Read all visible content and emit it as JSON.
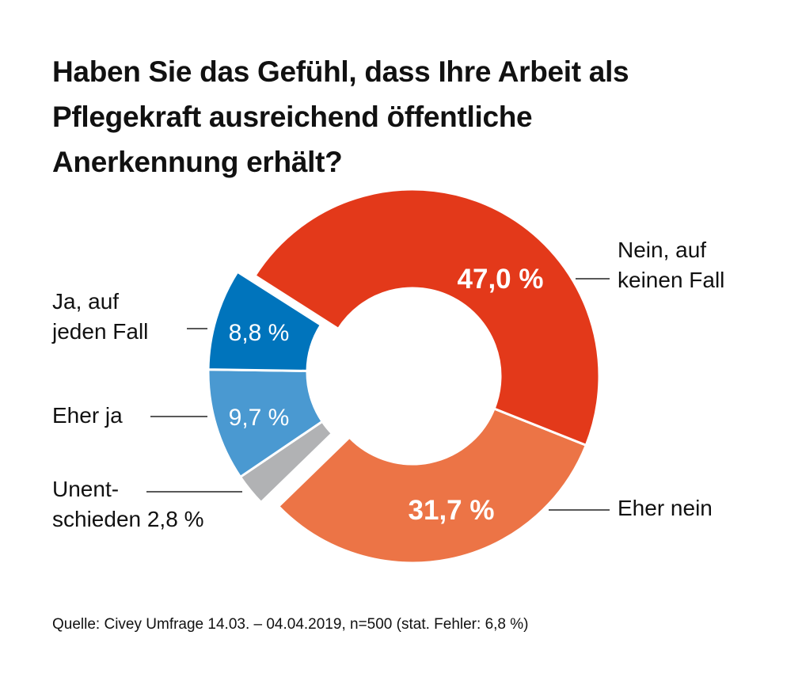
{
  "chart_data": {
    "type": "pie",
    "variant": "donut",
    "title": "Haben Sie das Gefühl, dass Ihre Arbeit als Pflegekraft ausreichend öffentliche Anerkennung erhält?",
    "title_lines": [
      "Haben Sie das Gefühl, dass Ihre Arbeit als",
      "Pflegekraft ausreichend öffentliche",
      "Anerkennung erhält?"
    ],
    "slices": [
      {
        "key": "nein_keinen_fall",
        "label_lines": [
          "Nein, auf",
          "keinen Fall"
        ],
        "value": 47.0,
        "value_label": "47,0 %",
        "color": "#E3391A",
        "exploded": false
      },
      {
        "key": "eher_nein",
        "label_lines": [
          "Eher nein"
        ],
        "value": 31.7,
        "value_label": "31,7 %",
        "color": "#EC7446",
        "exploded": false
      },
      {
        "key": "unentschieden",
        "label_lines": [
          "Unent-",
          "schieden 2,8 %"
        ],
        "value": 2.8,
        "value_label": "2,8 %",
        "color": "#B1B2B4",
        "exploded": true
      },
      {
        "key": "eher_ja",
        "label_lines": [
          "Eher ja"
        ],
        "value": 9.7,
        "value_label": "9,7 %",
        "color": "#4A99D1",
        "exploded": true
      },
      {
        "key": "ja_jeden_fall",
        "label_lines": [
          "Ja, auf",
          "jeden Fall"
        ],
        "value": 8.8,
        "value_label": "8,8 %",
        "color": "#0074BC",
        "exploded": true
      }
    ],
    "source": "Quelle: Civey Umfrage 14.03. – 04.04.2019, n=500 (stat. Fehler: 6,8 %)"
  }
}
